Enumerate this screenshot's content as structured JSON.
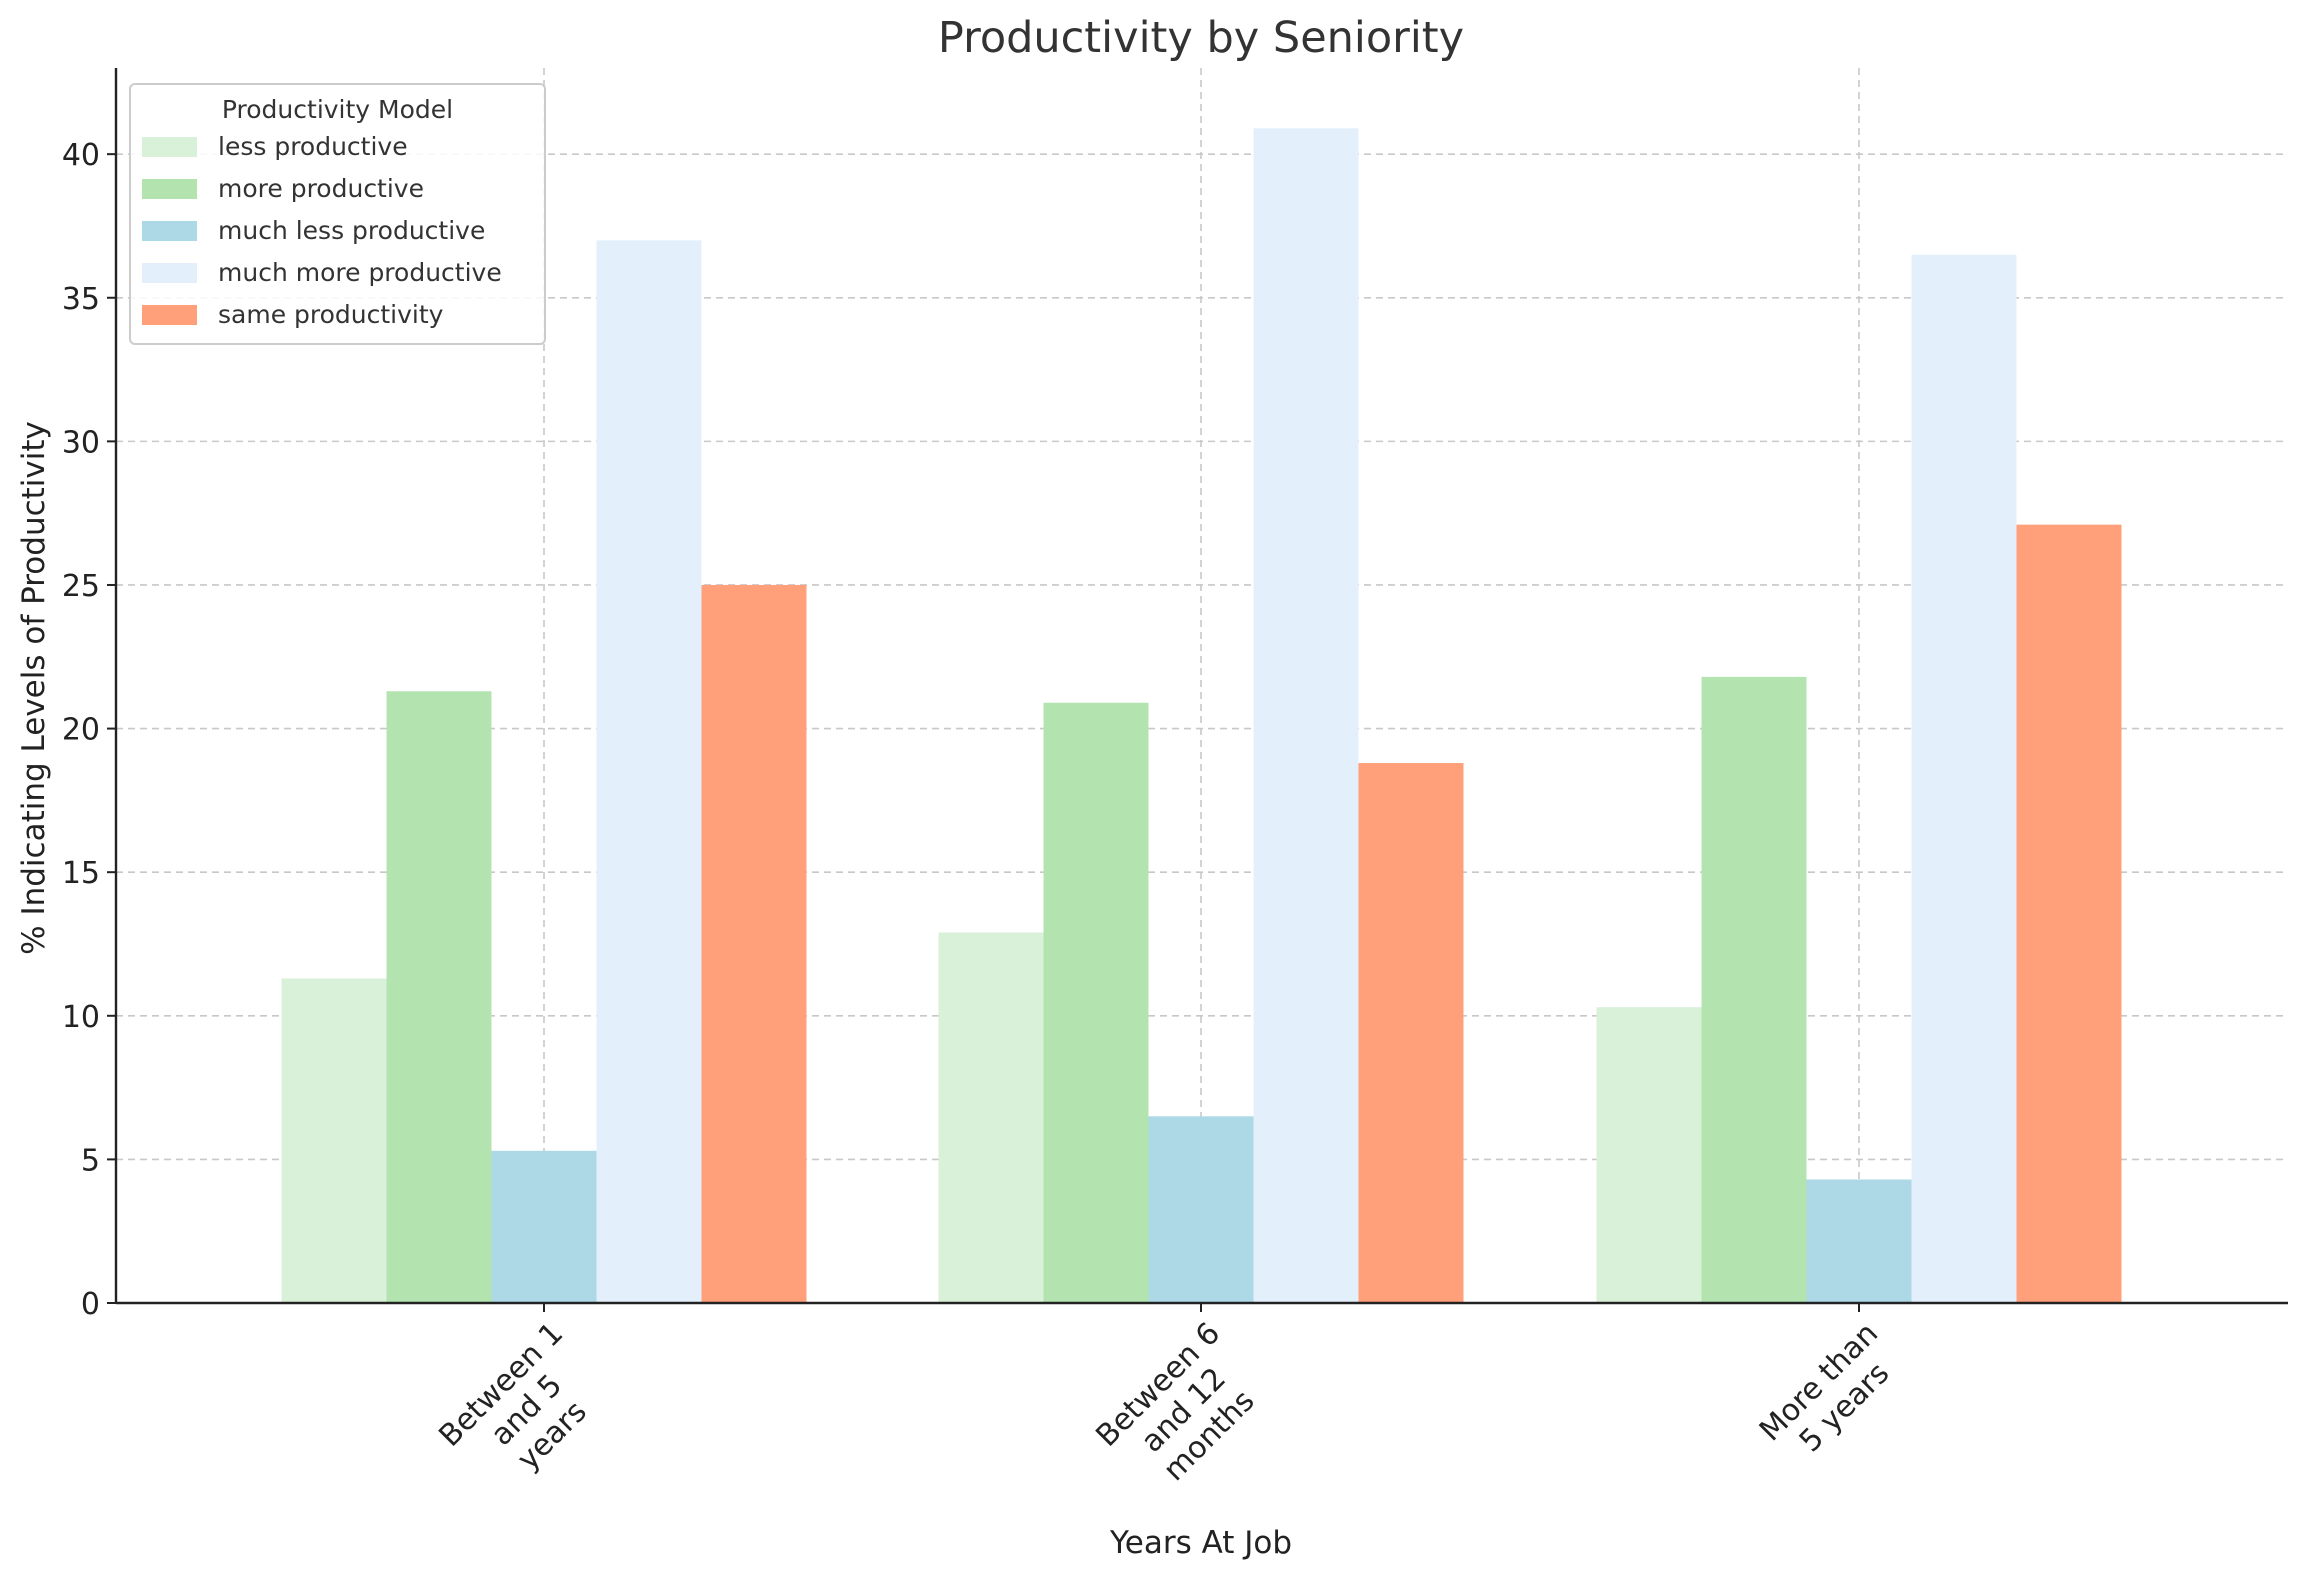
{
  "chart_data": {
    "type": "bar",
    "title": "Productivity by Seniority",
    "xlabel": "Years At Job",
    "ylabel": "% Indicating Levels of Productivity",
    "categories": [
      [
        "Between 1",
        "and 5",
        "years"
      ],
      [
        "Between 6",
        "and 12",
        "months"
      ],
      [
        "More than",
        "5 years"
      ]
    ],
    "ylim": [
      0,
      43
    ],
    "yticks": [
      0,
      5,
      10,
      15,
      20,
      25,
      30,
      35,
      40
    ],
    "grid": true,
    "legend": {
      "title": "Productivity Model",
      "position": "top-left"
    },
    "series": [
      {
        "name": "less productive",
        "color": "#d9f0d9",
        "values": [
          11.3,
          12.9,
          10.3
        ]
      },
      {
        "name": "more productive",
        "color": "#b3e4b0",
        "values": [
          21.3,
          20.9,
          21.8
        ]
      },
      {
        "name": "much less productive",
        "color": "#add8e6",
        "values": [
          5.3,
          6.5,
          4.3
        ]
      },
      {
        "name": "much more productive",
        "color": "#e3f0fc",
        "values": [
          37.0,
          40.9,
          36.5
        ]
      },
      {
        "name": "same productivity",
        "color": "#ffa07a",
        "values": [
          25.0,
          18.8,
          27.1
        ]
      }
    ]
  }
}
